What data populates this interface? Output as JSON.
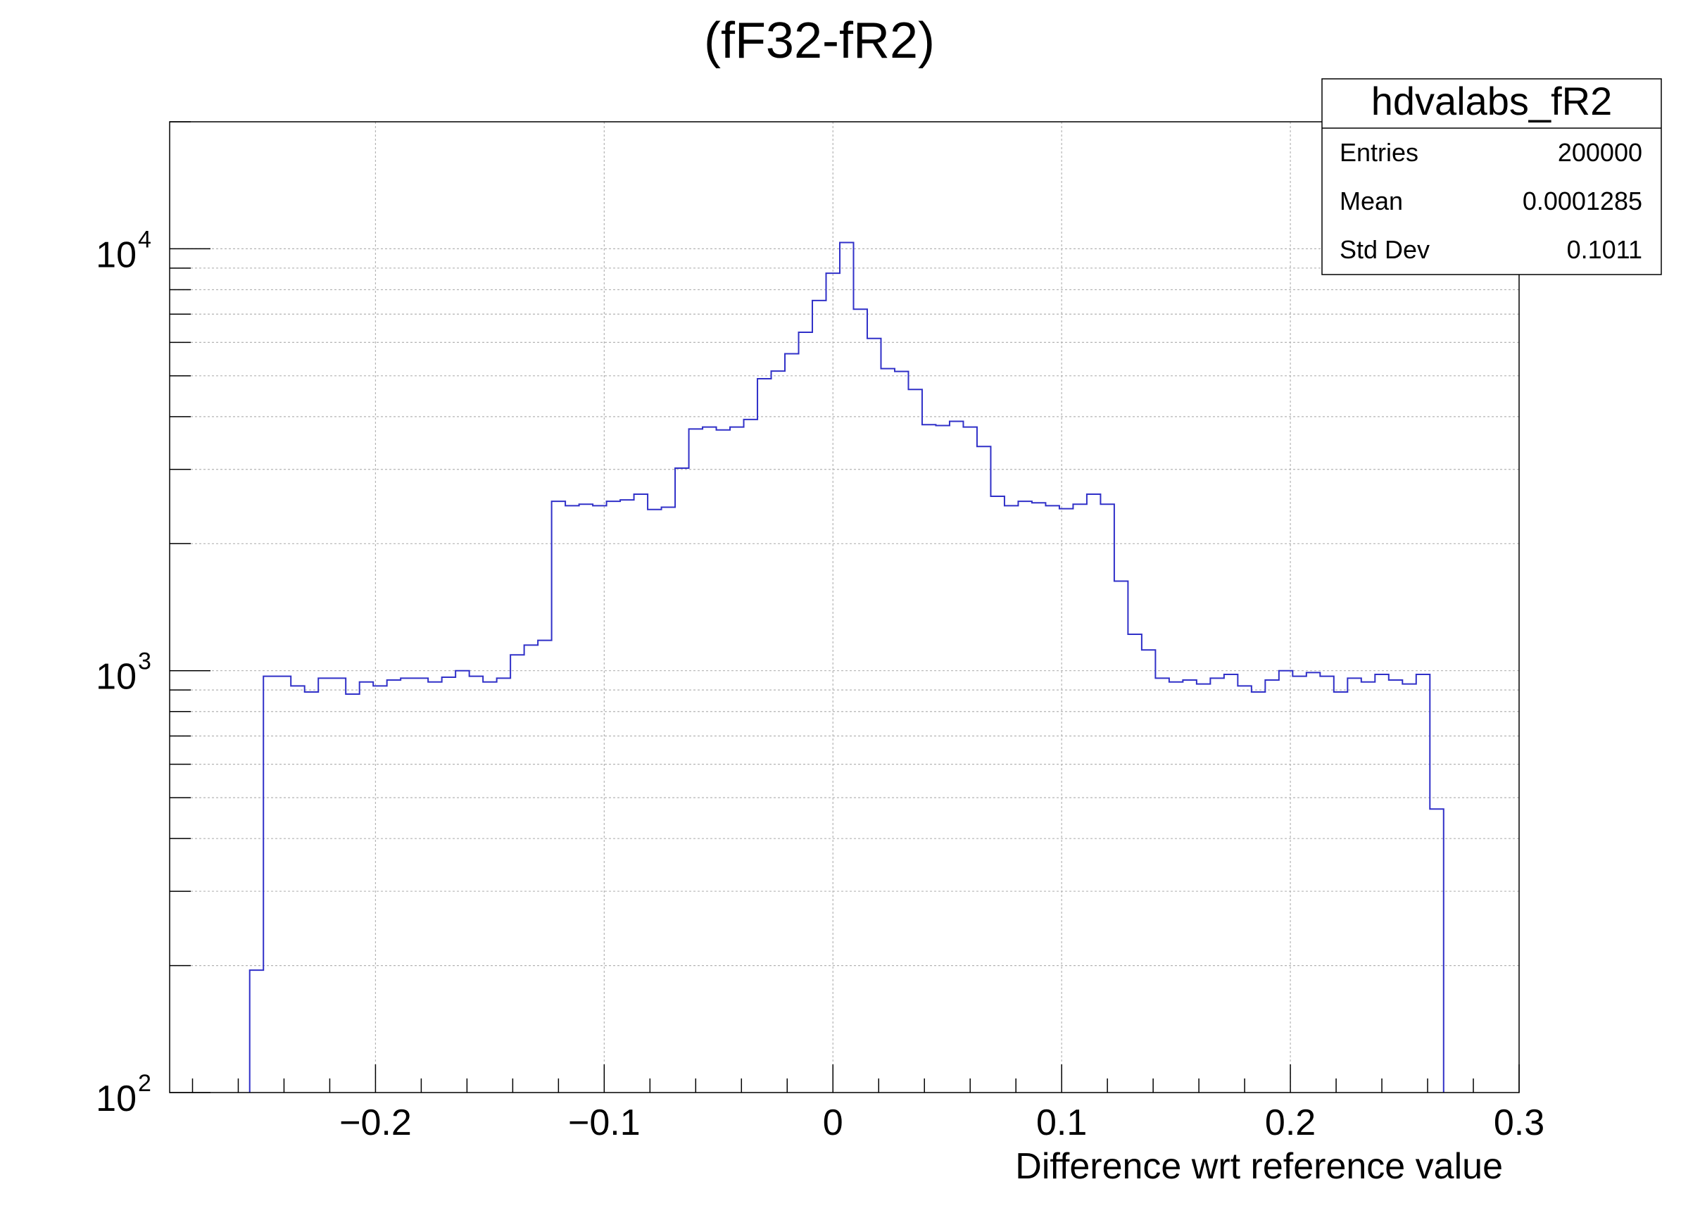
{
  "chart_data": {
    "type": "histogram",
    "title": "(fF32-fR2)",
    "xlabel": "Difference wrt reference value",
    "ylabel": "",
    "xlim": [
      -0.29,
      0.3
    ],
    "ylim": [
      100,
      20000
    ],
    "y_scale": "log",
    "grid": true,
    "line_color": "#3030c8",
    "x_ticks": [
      {
        "value": -0.2,
        "label": "−0.2"
      },
      {
        "value": -0.1,
        "label": "−0.1"
      },
      {
        "value": 0,
        "label": "0"
      },
      {
        "value": 0.1,
        "label": "0.1"
      },
      {
        "value": 0.2,
        "label": "0.2"
      },
      {
        "value": 0.3,
        "label": "0.3"
      }
    ],
    "y_ticks": [
      {
        "value": 100,
        "base": "10",
        "exp": "2"
      },
      {
        "value": 1000,
        "base": "10",
        "exp": "3"
      },
      {
        "value": 10000,
        "base": "10",
        "exp": "4"
      }
    ],
    "bin_start": -0.255,
    "bin_width": 0.006,
    "values": [
      195,
      970,
      970,
      920,
      890,
      960,
      960,
      880,
      940,
      920,
      950,
      960,
      960,
      940,
      965,
      1000,
      970,
      940,
      960,
      1090,
      1150,
      1180,
      2520,
      2460,
      2480,
      2460,
      2520,
      2540,
      2620,
      2410,
      2440,
      3020,
      3740,
      3780,
      3720,
      3780,
      3940,
      4920,
      5130,
      5640,
      6340,
      7540,
      8750,
      10350,
      7190,
      6130,
      5200,
      5120,
      4640,
      3830,
      3810,
      3900,
      3780,
      3400,
      2590,
      2460,
      2520,
      2500,
      2460,
      2420,
      2480,
      2620,
      2480,
      1630,
      1220,
      1120,
      960,
      940,
      950,
      930,
      960,
      980,
      920,
      890,
      950,
      1000,
      970,
      990,
      970,
      890,
      960,
      940,
      980,
      950,
      930,
      980,
      470
    ],
    "stats_box": {
      "title": "hdvalabs_fR2",
      "rows": [
        {
          "label": "Entries",
          "value": "200000"
        },
        {
          "label": "Mean",
          "value": "0.0001285"
        },
        {
          "label": "Std Dev",
          "value": "0.1011"
        }
      ]
    }
  }
}
